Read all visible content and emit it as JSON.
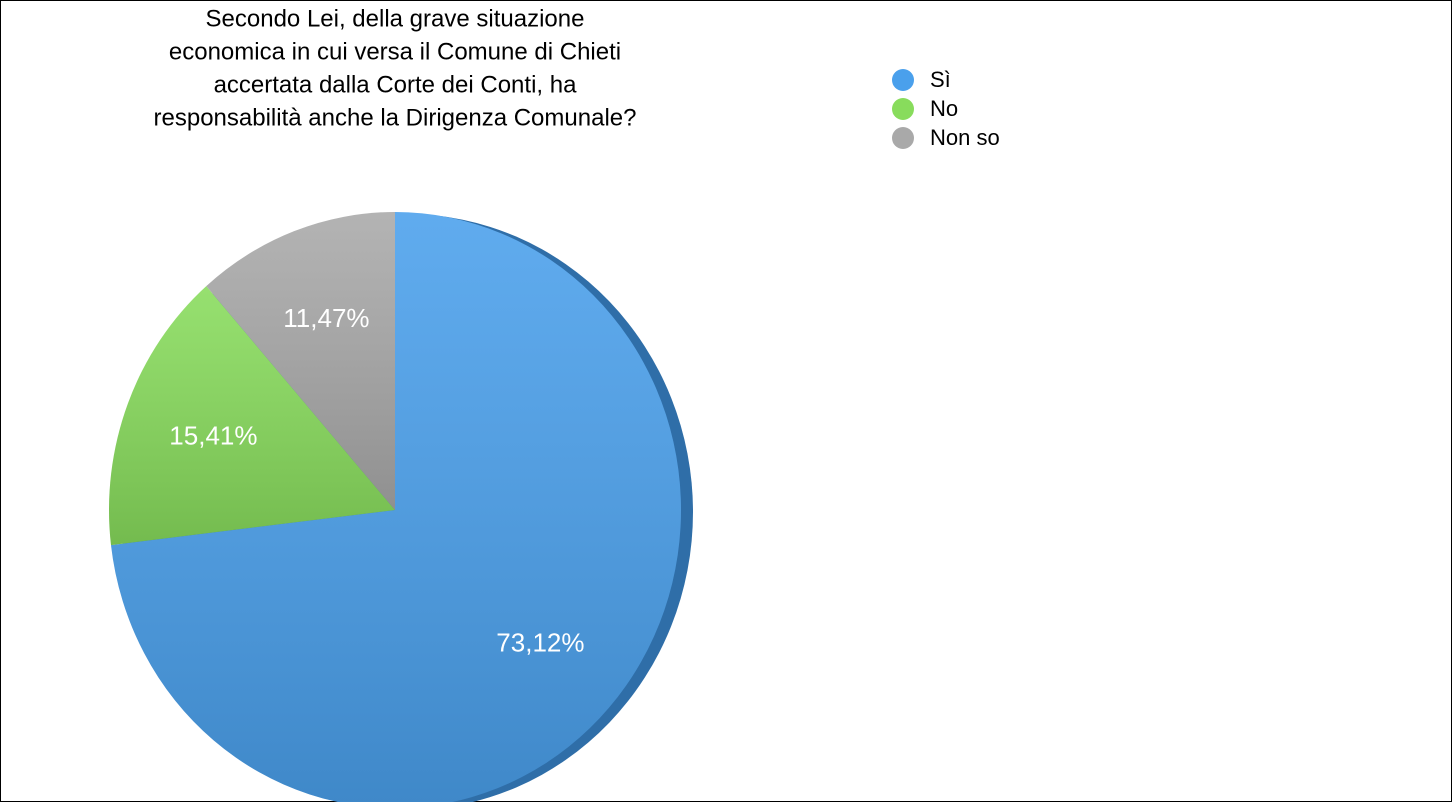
{
  "chart_data": {
    "type": "pie",
    "title": [
      "Secondo Lei, della grave situazione",
      "economica in cui versa il Comune di Chieti",
      "accertata dalla Corte dei Conti, ha",
      "responsabilità anche la Dirigenza Comunale?"
    ],
    "categories": [
      "Sì",
      "No",
      "Non so"
    ],
    "values": [
      73.12,
      15.41,
      11.47
    ],
    "value_labels": [
      "73,12%",
      "15,41%",
      "11,47%"
    ],
    "colors": [
      "#4aa0ec",
      "#88dc5c",
      "#a9a9a9"
    ],
    "legend": "top-right"
  }
}
